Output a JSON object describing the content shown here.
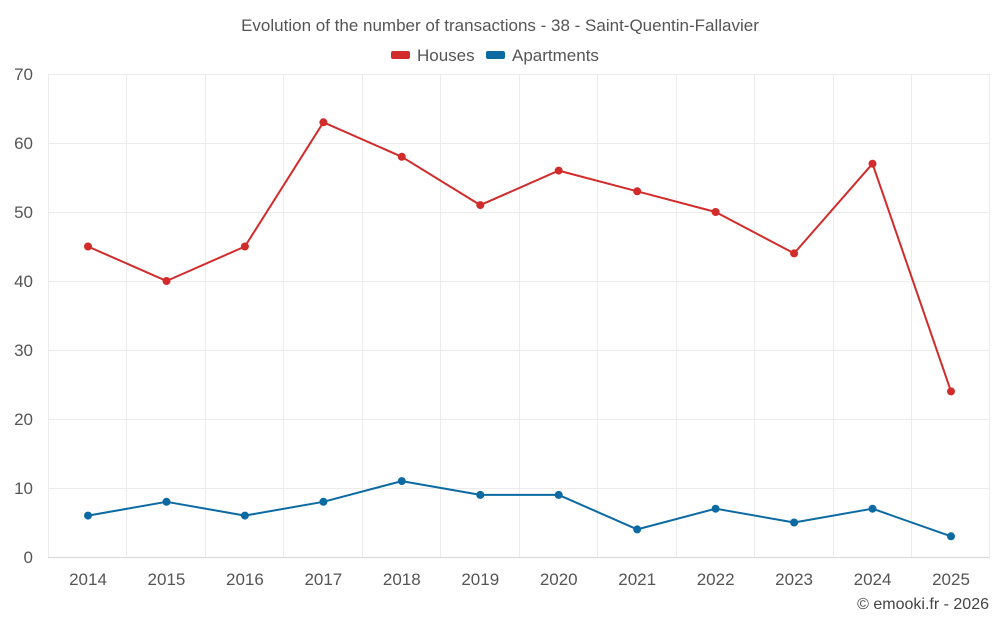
{
  "chart_data": {
    "type": "line",
    "title": "Evolution of the number of transactions - 38 - Saint-Quentin-Fallavier",
    "categories": [
      "2014",
      "2015",
      "2016",
      "2017",
      "2018",
      "2019",
      "2020",
      "2021",
      "2022",
      "2023",
      "2024",
      "2025"
    ],
    "series": [
      {
        "name": "Houses",
        "color": "#d22b2b",
        "values": [
          45,
          40,
          45,
          63,
          58,
          51,
          56,
          53,
          50,
          44,
          57,
          24
        ]
      },
      {
        "name": "Apartments",
        "color": "#0b6aa2",
        "values": [
          6,
          8,
          6,
          8,
          11,
          9,
          9,
          4,
          7,
          5,
          7,
          3
        ]
      }
    ],
    "y_ticks": [
      "0",
      "10",
      "20",
      "30",
      "40",
      "50",
      "60",
      "70"
    ],
    "ylim": [
      0,
      70
    ],
    "xlabel": "",
    "ylabel": "",
    "grid": true,
    "legend": "top-center"
  },
  "credit": "© emooki.fr - 2026"
}
